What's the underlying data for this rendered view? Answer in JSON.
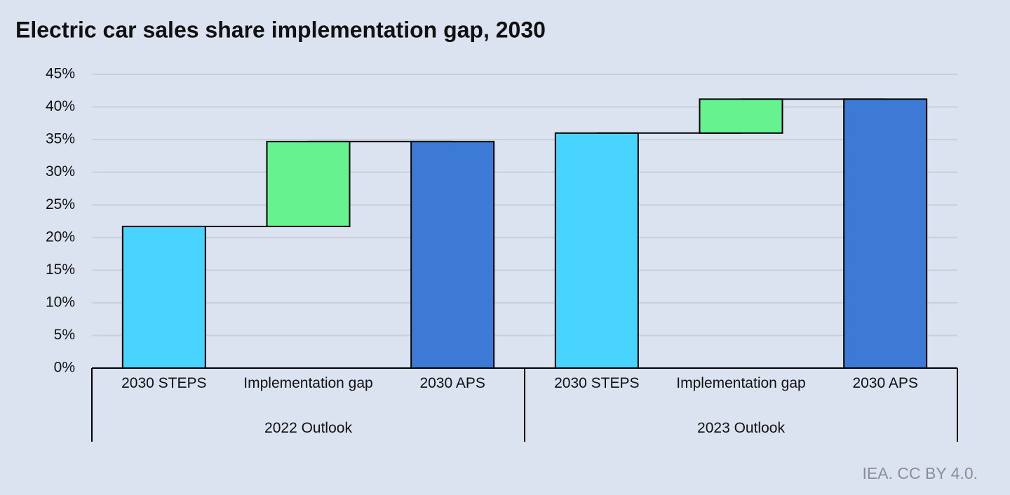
{
  "chart_data": {
    "type": "waterfall",
    "title": "Electric car sales share implementation gap, 2030",
    "source": "IEA. CC BY 4.0.",
    "measures": [
      "absolute",
      "relative",
      "total"
    ],
    "colors": [
      "#48d4ff",
      "#66f28f",
      "#3d7ad5"
    ],
    "groups": [
      {
        "name": "2022 Outlook",
        "categories": [
          "2030 STEPS",
          "Implementation gap",
          "2030 APS"
        ],
        "values": [
          21.7,
          13,
          34.7
        ]
      },
      {
        "name": "2023 Outlook",
        "categories": [
          "2030 STEPS",
          "Implementation gap",
          "2030 APS"
        ],
        "values": [
          36,
          5.2,
          41.2
        ]
      }
    ],
    "ylim": [
      0,
      45
    ],
    "yticks": [
      {
        "value": 0,
        "label": "0%"
      },
      {
        "value": 5,
        "label": "5%"
      },
      {
        "value": 10,
        "label": "10%"
      },
      {
        "value": 15,
        "label": "15%"
      },
      {
        "value": 20,
        "label": "20%"
      },
      {
        "value": 25,
        "label": "25%"
      },
      {
        "value": 30,
        "label": "30%"
      },
      {
        "value": 35,
        "label": "35%"
      },
      {
        "value": 40,
        "label": "40%"
      },
      {
        "value": 45,
        "label": "45%"
      }
    ],
    "grid": true
  }
}
